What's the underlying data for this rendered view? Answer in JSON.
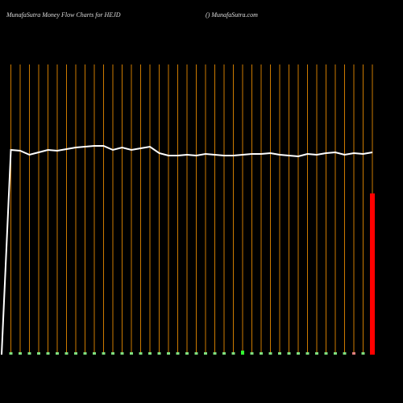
{
  "chart_data": {
    "type": "bar",
    "title": "MunafaSutra  Money Flow  Charts for HEJD",
    "subtitle": "() MunafaSutra.com",
    "categories": [
      null,
      null,
      null,
      null,
      null,
      null,
      null,
      null,
      null,
      null,
      null,
      null,
      null,
      null,
      null,
      null,
      null,
      null,
      null,
      null,
      null,
      null,
      null,
      null,
      null,
      null,
      null,
      null,
      null,
      null,
      null,
      null,
      null,
      null,
      null,
      null,
      null,
      null,
      null,
      null,
      null
    ],
    "values": [
      null,
      1.5,
      1.5,
      1.5,
      1.5,
      1.5,
      1.5,
      1.5,
      1.5,
      1.5,
      1.5,
      1.5,
      1.5,
      1.5,
      1.5,
      1.5,
      1.5,
      1.5,
      1.5,
      1.5,
      1.5,
      1.5,
      1.5,
      1.5,
      1.5,
      1.5,
      2.5,
      1.5,
      1.5,
      1.5,
      1.5,
      1.5,
      1.5,
      1.5,
      1.5,
      1.5,
      1.5,
      1.5,
      1.5,
      1.5,
      100
    ],
    "colors": [
      null,
      "#7fe07f",
      "#7fe07f",
      "#7fe07f",
      "#7fe07f",
      "#7fe07f",
      "#7fe07f",
      "#7fe07f",
      "#7fe07f",
      "#7fe07f",
      "#7fe07f",
      "#7fe07f",
      "#7fe07f",
      "#7fe07f",
      "#7fe07f",
      "#7fe07f",
      "#7fe07f",
      "#7fe07f",
      "#7fe07f",
      "#7fe07f",
      "#7fe07f",
      "#7fe07f",
      "#7fe07f",
      "#7fe07f",
      "#7fe07f",
      "#7fe07f",
      "#33ff33",
      "#7fe07f",
      "#7fe07f",
      "#7fe07f",
      "#7fe07f",
      "#7fe07f",
      "#7fe07f",
      "#7fe07f",
      "#7fe07f",
      "#7fe07f",
      "#7fe07f",
      "#7fe07f",
      "#e07f7f",
      "#7fe07f",
      "#ff0000"
    ],
    "line_values": [
      0,
      127,
      126.5,
      124,
      125.5,
      127,
      126.5,
      127.5,
      128.5,
      129,
      129.5,
      129.5,
      127,
      128.5,
      127,
      128,
      129,
      125,
      123.5,
      123.5,
      124,
      123.5,
      124.5,
      124,
      123.5,
      123.5,
      124,
      124.5,
      124.5,
      125,
      124,
      123.5,
      123,
      124.5,
      124,
      125,
      125.5,
      124,
      125,
      124.5,
      125.5
    ],
    "line_color": "#ffffff",
    "grid_color": "#cc7a00",
    "ylim": [
      0,
      200
    ]
  }
}
